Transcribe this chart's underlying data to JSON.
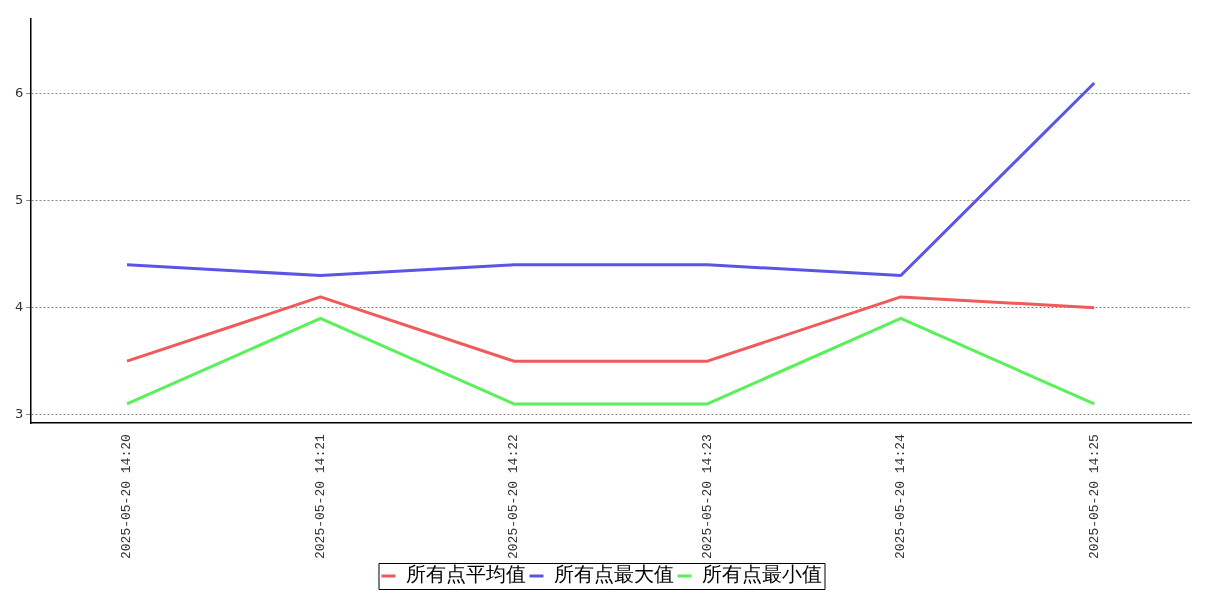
{
  "chart_data": {
    "type": "line",
    "categories": [
      "2025-05-20 14:20",
      "2025-05-20 14:21",
      "2025-05-20 14:22",
      "2025-05-20 14:23",
      "2025-05-20 14:24",
      "2025-05-20 14:25"
    ],
    "series": [
      {
        "name": "所有点平均值",
        "color": "#f05a5a",
        "values": [
          3.5,
          4.1,
          3.5,
          3.5,
          4.1,
          4.0
        ]
      },
      {
        "name": "所有点最大值",
        "color": "#5a55e6",
        "values": [
          4.4,
          4.3,
          4.4,
          4.4,
          4.3,
          6.1
        ]
      },
      {
        "name": "所有点最小值",
        "color": "#5af05a",
        "values": [
          3.1,
          3.9,
          3.1,
          3.1,
          3.9,
          3.1
        ]
      }
    ],
    "ylim": [
      2.92,
      6.7
    ],
    "yticks": [
      3,
      4,
      5,
      6
    ],
    "grid": "y",
    "legend": "bottom",
    "marker": "none",
    "line_style": "solid"
  }
}
